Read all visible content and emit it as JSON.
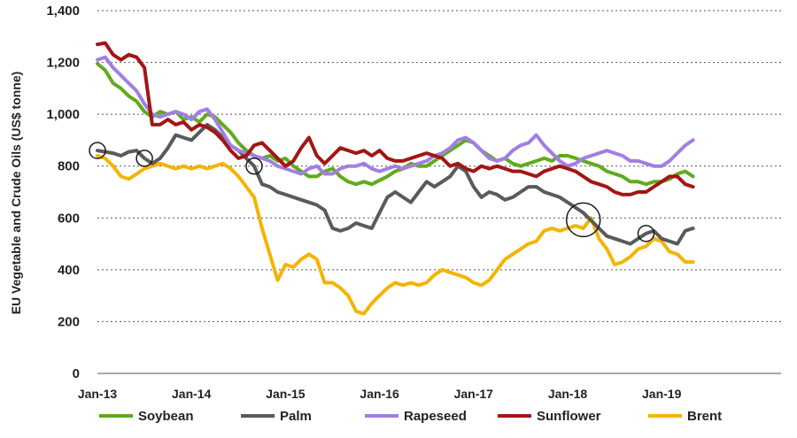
{
  "chart_data": {
    "type": "line",
    "title": "",
    "xlabel": "",
    "ylabel": "EU Vegetable and Crude Oils (US$ tonne)",
    "ylim": [
      0,
      1400
    ],
    "yticks": [
      "0",
      "200",
      "400",
      "600",
      "800",
      "1,000",
      "1,200",
      "1,400"
    ],
    "xticks": [
      "Jan-13",
      "Jan-14",
      "Jan-15",
      "Jan-16",
      "Jan-17",
      "Jan-18",
      "Jan-19"
    ],
    "x_start": "Jan-13",
    "grid": "horizontal dashed",
    "legend_position": "bottom",
    "series": [
      {
        "name": "Soybean",
        "color": "#5fab1f",
        "values": [
          1195,
          1170,
          1120,
          1100,
          1070,
          1050,
          1010,
          990,
          1010,
          1000,
          1010,
          980,
          990,
          970,
          1000,
          990,
          960,
          930,
          890,
          860,
          840,
          830,
          840,
          820,
          830,
          800,
          780,
          760,
          760,
          780,
          790,
          760,
          740,
          730,
          740,
          730,
          745,
          760,
          780,
          790,
          810,
          800,
          800,
          820,
          840,
          860,
          880,
          900,
          890,
          860,
          840,
          820,
          830,
          810,
          800,
          810,
          820,
          830,
          820,
          840,
          840,
          830,
          820,
          810,
          800,
          780,
          770,
          760,
          740,
          740,
          730,
          740,
          740,
          750,
          770,
          780,
          760
        ]
      },
      {
        "name": "Palm",
        "color": "#5a5a5a",
        "values": [
          860,
          855,
          850,
          840,
          855,
          860,
          830,
          810,
          830,
          870,
          920,
          910,
          900,
          930,
          960,
          940,
          910,
          880,
          860,
          830,
          800,
          730,
          720,
          700,
          690,
          680,
          670,
          660,
          650,
          630,
          560,
          550,
          560,
          580,
          570,
          560,
          620,
          680,
          700,
          680,
          660,
          700,
          740,
          720,
          740,
          760,
          800,
          780,
          720,
          680,
          700,
          690,
          670,
          680,
          700,
          720,
          720,
          700,
          690,
          680,
          660,
          640,
          620,
          590,
          560,
          530,
          520,
          510,
          500,
          520,
          540,
          550,
          520,
          510,
          500,
          550,
          560
        ]
      },
      {
        "name": "Rapeseed",
        "color": "#a27ee2",
        "values": [
          1210,
          1220,
          1180,
          1150,
          1120,
          1090,
          1040,
          1000,
          990,
          1000,
          1010,
          1000,
          980,
          1010,
          1020,
          980,
          930,
          880,
          860,
          850,
          840,
          830,
          820,
          800,
          790,
          780,
          770,
          790,
          800,
          770,
          770,
          790,
          800,
          800,
          810,
          790,
          780,
          790,
          800,
          790,
          800,
          810,
          820,
          840,
          850,
          870,
          900,
          910,
          890,
          860,
          830,
          820,
          830,
          860,
          880,
          890,
          920,
          880,
          850,
          820,
          800,
          810,
          830,
          840,
          850,
          860,
          850,
          840,
          820,
          820,
          810,
          800,
          800,
          820,
          850,
          880,
          900
        ]
      },
      {
        "name": "Sunflower",
        "color": "#a31515",
        "values": [
          1270,
          1275,
          1230,
          1210,
          1230,
          1220,
          1180,
          960,
          960,
          980,
          960,
          970,
          940,
          960,
          950,
          930,
          900,
          860,
          830,
          840,
          880,
          890,
          860,
          830,
          800,
          820,
          870,
          910,
          840,
          810,
          840,
          870,
          860,
          850,
          860,
          840,
          860,
          830,
          820,
          820,
          830,
          840,
          850,
          840,
          830,
          800,
          810,
          790,
          780,
          800,
          790,
          800,
          790,
          780,
          780,
          770,
          760,
          780,
          790,
          800,
          790,
          780,
          760,
          740,
          730,
          720,
          700,
          690,
          690,
          700,
          700,
          720,
          740,
          760,
          760,
          730,
          720
        ]
      },
      {
        "name": "Brent",
        "color": "#f4b400",
        "values": [
          840,
          830,
          800,
          760,
          750,
          770,
          790,
          800,
          810,
          800,
          790,
          800,
          790,
          800,
          790,
          800,
          810,
          790,
          760,
          720,
          680,
          560,
          460,
          360,
          420,
          410,
          440,
          460,
          440,
          350,
          350,
          330,
          300,
          240,
          230,
          270,
          300,
          330,
          350,
          340,
          350,
          340,
          350,
          380,
          400,
          390,
          380,
          370,
          350,
          340,
          360,
          400,
          440,
          460,
          480,
          500,
          510,
          550,
          560,
          550,
          560,
          570,
          560,
          600,
          520,
          480,
          420,
          430,
          450,
          480,
          490,
          520,
          510,
          470,
          460,
          430,
          430
        ]
      }
    ],
    "circled_points": [
      {
        "series": "Palm",
        "index": 0
      },
      {
        "series": "Palm",
        "index": 6
      },
      {
        "series": "Palm",
        "index": 20
      },
      {
        "series": "Palm",
        "index": 62
      },
      {
        "series": "Palm",
        "index": 70
      }
    ]
  }
}
